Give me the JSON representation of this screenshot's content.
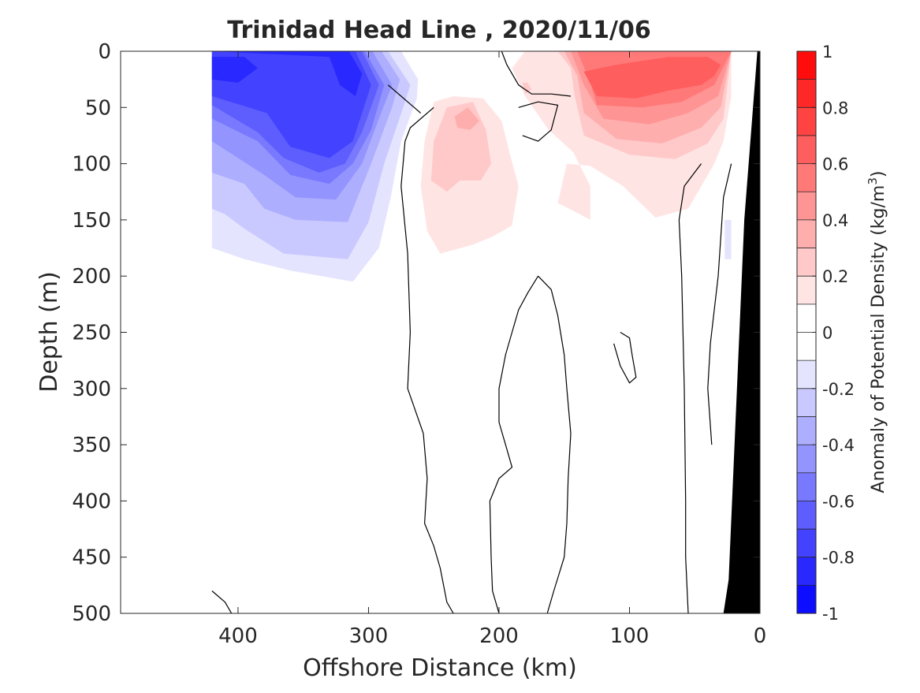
{
  "chart_data": {
    "type": "heatmap",
    "subtype": "filled-contour-section",
    "title": "Trinidad Head Line , 2020/11/06",
    "xlabel": "Offshore Distance (km)",
    "ylabel": "Depth (m)",
    "xlim": [
      490,
      0
    ],
    "xaxis_reversed": true,
    "ylim": [
      0,
      500
    ],
    "yaxis_reversed": true,
    "xticks": [
      400,
      300,
      200,
      100,
      0
    ],
    "yticks": [
      0,
      50,
      100,
      150,
      200,
      250,
      300,
      350,
      400,
      450,
      500
    ],
    "grid": false,
    "colorbar": {
      "label": "Anomaly of Potential Density",
      "unit_prefix": "(kg/m",
      "unit_exp": "3",
      "unit_suffix": ")",
      "range": [
        -1,
        1
      ],
      "step": 0.1,
      "ticks": [
        1,
        0.8,
        0.6,
        0.4,
        0.2,
        0,
        -0.2,
        -0.4,
        -0.6,
        -0.8,
        -1
      ],
      "colormap": "blue-white-red",
      "neg_color": "#0000ff",
      "zero_color": "#ffffff",
      "pos_color": "#ff0000"
    },
    "bathymetry_color": "#000000",
    "contour_line_color": "#000000",
    "contour_regions": [
      {
        "level": -0.1,
        "points": [
          [
            420,
            0
          ],
          [
            275,
            0
          ],
          [
            262,
            25
          ],
          [
            263,
            42
          ],
          [
            275,
            80
          ],
          [
            283,
            130
          ],
          [
            292,
            175
          ],
          [
            312,
            205
          ],
          [
            360,
            195
          ],
          [
            395,
            185
          ],
          [
            420,
            175
          ]
        ]
      },
      {
        "level": -0.2,
        "points": [
          [
            420,
            0
          ],
          [
            285,
            0
          ],
          [
            268,
            30
          ],
          [
            272,
            45
          ],
          [
            288,
            100
          ],
          [
            300,
            152
          ],
          [
            316,
            185
          ],
          [
            365,
            180
          ],
          [
            395,
            158
          ],
          [
            410,
            145
          ],
          [
            420,
            140
          ]
        ]
      },
      {
        "level": -0.3,
        "points": [
          [
            420,
            0
          ],
          [
            290,
            0
          ],
          [
            276,
            25
          ],
          [
            282,
            50
          ],
          [
            298,
            100
          ],
          [
            316,
            152
          ],
          [
            356,
            150
          ],
          [
            380,
            140
          ],
          [
            395,
            118
          ],
          [
            420,
            108
          ]
        ]
      },
      {
        "level": -0.4,
        "points": [
          [
            420,
            0
          ],
          [
            297,
            0
          ],
          [
            282,
            30
          ],
          [
            292,
            60
          ],
          [
            305,
            100
          ],
          [
            325,
            132
          ],
          [
            356,
            130
          ],
          [
            380,
            110
          ],
          [
            400,
            95
          ],
          [
            420,
            80
          ]
        ]
      },
      {
        "level": -0.5,
        "points": [
          [
            420,
            0
          ],
          [
            303,
            0
          ],
          [
            288,
            30
          ],
          [
            298,
            70
          ],
          [
            312,
            100
          ],
          [
            330,
            118
          ],
          [
            360,
            110
          ],
          [
            385,
            80
          ],
          [
            420,
            60
          ]
        ]
      },
      {
        "level": -0.6,
        "points": [
          [
            420,
            0
          ],
          [
            305,
            0
          ],
          [
            292,
            30
          ],
          [
            305,
            72
          ],
          [
            318,
            100
          ],
          [
            338,
            108
          ],
          [
            365,
            95
          ],
          [
            385,
            72
          ],
          [
            420,
            48
          ]
        ]
      },
      {
        "level": -0.7,
        "points": [
          [
            420,
            0
          ],
          [
            310,
            0
          ],
          [
            298,
            30
          ],
          [
            312,
            80
          ],
          [
            330,
            95
          ],
          [
            360,
            85
          ],
          [
            378,
            55
          ],
          [
            420,
            40
          ]
        ]
      },
      {
        "level": -0.8,
        "points": [
          [
            420,
            0
          ],
          [
            330,
            5
          ],
          [
            322,
            30
          ],
          [
            310,
            40
          ],
          [
            305,
            20
          ],
          [
            315,
            0
          ]
        ]
      },
      {
        "level": -0.8,
        "points": [
          [
            420,
            5
          ],
          [
            420,
            25
          ],
          [
            400,
            28
          ],
          [
            385,
            15
          ],
          [
            395,
            5
          ]
        ]
      },
      {
        "level": -0.1,
        "points": [
          [
            27,
            150
          ],
          [
            22,
            150
          ],
          [
            22,
            185
          ],
          [
            27,
            185
          ]
        ]
      },
      {
        "level": 0.1,
        "points": [
          [
            250,
            45
          ],
          [
            235,
            40
          ],
          [
            212,
            42
          ],
          [
            198,
            62
          ],
          [
            192,
            90
          ],
          [
            185,
            120
          ],
          [
            190,
            155
          ],
          [
            205,
            165
          ],
          [
            220,
            172
          ],
          [
            245,
            180
          ],
          [
            255,
            160
          ],
          [
            260,
            120
          ],
          [
            257,
            80
          ]
        ]
      },
      {
        "level": 0.1,
        "points": [
          [
            190,
            15
          ],
          [
            180,
            40
          ],
          [
            162,
            70
          ],
          [
            143,
            90
          ],
          [
            130,
            120
          ],
          [
            130,
            150
          ],
          [
            138,
            145
          ],
          [
            155,
            135
          ],
          [
            148,
            100
          ],
          [
            130,
            102
          ],
          [
            105,
            120
          ],
          [
            80,
            148
          ],
          [
            55,
            140
          ],
          [
            35,
            100
          ],
          [
            28,
            80
          ],
          [
            22,
            40
          ],
          [
            22,
            0
          ],
          [
            180,
            0
          ]
        ]
      },
      {
        "level": 0.2,
        "points": [
          [
            240,
            50
          ],
          [
            220,
            45
          ],
          [
            210,
            70
          ],
          [
            206,
            100
          ],
          [
            214,
            115
          ],
          [
            230,
            115
          ],
          [
            240,
            125
          ],
          [
            252,
            115
          ],
          [
            250,
            80
          ]
        ]
      },
      {
        "level": 0.2,
        "points": [
          [
            178,
            28
          ],
          [
            182,
            28
          ],
          [
            180,
            38
          ],
          [
            175,
            34
          ]
        ]
      },
      {
        "level": 0.2,
        "points": [
          [
            155,
            0
          ],
          [
            145,
            15
          ],
          [
            142,
            40
          ],
          [
            135,
            75
          ],
          [
            100,
            92
          ],
          [
            65,
            96
          ],
          [
            40,
            82
          ],
          [
            28,
            60
          ],
          [
            22,
            0
          ]
        ]
      },
      {
        "level": 0.3,
        "points": [
          [
            234,
            58
          ],
          [
            224,
            50
          ],
          [
            215,
            62
          ],
          [
            222,
            70
          ],
          [
            232,
            68
          ]
        ]
      },
      {
        "level": 0.3,
        "points": [
          [
            150,
            0
          ],
          [
            140,
            22
          ],
          [
            135,
            55
          ],
          [
            110,
            78
          ],
          [
            75,
            82
          ],
          [
            45,
            68
          ],
          [
            30,
            50
          ],
          [
            22,
            0
          ]
        ]
      },
      {
        "level": 0.4,
        "points": [
          [
            145,
            0
          ],
          [
            135,
            30
          ],
          [
            120,
            60
          ],
          [
            85,
            65
          ],
          [
            55,
            55
          ],
          [
            32,
            40
          ],
          [
            22,
            0
          ]
        ]
      },
      {
        "level": 0.5,
        "points": [
          [
            140,
            0
          ],
          [
            130,
            28
          ],
          [
            125,
            48
          ],
          [
            90,
            50
          ],
          [
            60,
            45
          ],
          [
            35,
            30
          ],
          [
            22,
            0
          ]
        ]
      },
      {
        "level": 0.6,
        "points": [
          [
            135,
            18
          ],
          [
            125,
            40
          ],
          [
            95,
            42
          ],
          [
            70,
            35
          ],
          [
            45,
            30
          ],
          [
            35,
            22
          ],
          [
            30,
            12
          ],
          [
            40,
            5
          ],
          [
            70,
            5
          ],
          [
            110,
            12
          ]
        ]
      }
    ],
    "contour_lines": [
      [
        [
          198,
          0
        ],
        [
          194,
          12
        ],
        [
          185,
          30
        ],
        [
          175,
          38
        ],
        [
          160,
          38
        ],
        [
          145,
          40
        ]
      ],
      [
        [
          260,
          55
        ],
        [
          270,
          45
        ],
        [
          285,
          30
        ]
      ],
      [
        [
          250,
          50
        ],
        [
          268,
          68
        ],
        [
          272,
          80
        ],
        [
          275,
          120
        ],
        [
          270,
          180
        ],
        [
          268,
          250
        ],
        [
          270,
          300
        ],
        [
          258,
          340
        ],
        [
          255,
          380
        ],
        [
          257,
          420
        ],
        [
          250,
          440
        ],
        [
          245,
          460
        ],
        [
          240,
          490
        ],
        [
          235,
          500
        ]
      ],
      [
        [
          185,
          50
        ],
        [
          170,
          45
        ],
        [
          155,
          48
        ],
        [
          160,
          70
        ],
        [
          170,
          80
        ],
        [
          182,
          75
        ]
      ],
      [
        [
          170,
          200
        ],
        [
          160,
          212
        ],
        [
          155,
          235
        ],
        [
          150,
          270
        ],
        [
          148,
          300
        ],
        [
          145,
          340
        ],
        [
          147,
          380
        ],
        [
          148,
          420
        ],
        [
          150,
          450
        ],
        [
          158,
          480
        ],
        [
          163,
          500
        ]
      ],
      [
        [
          170,
          200
        ],
        [
          178,
          215
        ],
        [
          185,
          230
        ],
        [
          190,
          250
        ],
        [
          195,
          270
        ],
        [
          200,
          300
        ],
        [
          200,
          330
        ],
        [
          195,
          350
        ],
        [
          190,
          370
        ],
        [
          200,
          380
        ],
        [
          207,
          400
        ],
        [
          206,
          450
        ],
        [
          205,
          480
        ],
        [
          200,
          500
        ]
      ],
      [
        [
          107,
          250
        ],
        [
          100,
          255
        ],
        [
          98,
          270
        ],
        [
          95,
          290
        ],
        [
          100,
          295
        ],
        [
          107,
          280
        ],
        [
          112,
          260
        ]
      ],
      [
        [
          45,
          100
        ],
        [
          58,
          120
        ],
        [
          62,
          150
        ],
        [
          60,
          200
        ],
        [
          58,
          300
        ],
        [
          57,
          400
        ],
        [
          57,
          450
        ],
        [
          55,
          500
        ]
      ],
      [
        [
          22,
          100
        ],
        [
          28,
          130
        ],
        [
          32,
          200
        ],
        [
          38,
          260
        ],
        [
          40,
          300
        ],
        [
          37,
          350
        ]
      ],
      [
        [
          420,
          480
        ],
        [
          410,
          490
        ],
        [
          405,
          500
        ]
      ]
    ]
  }
}
